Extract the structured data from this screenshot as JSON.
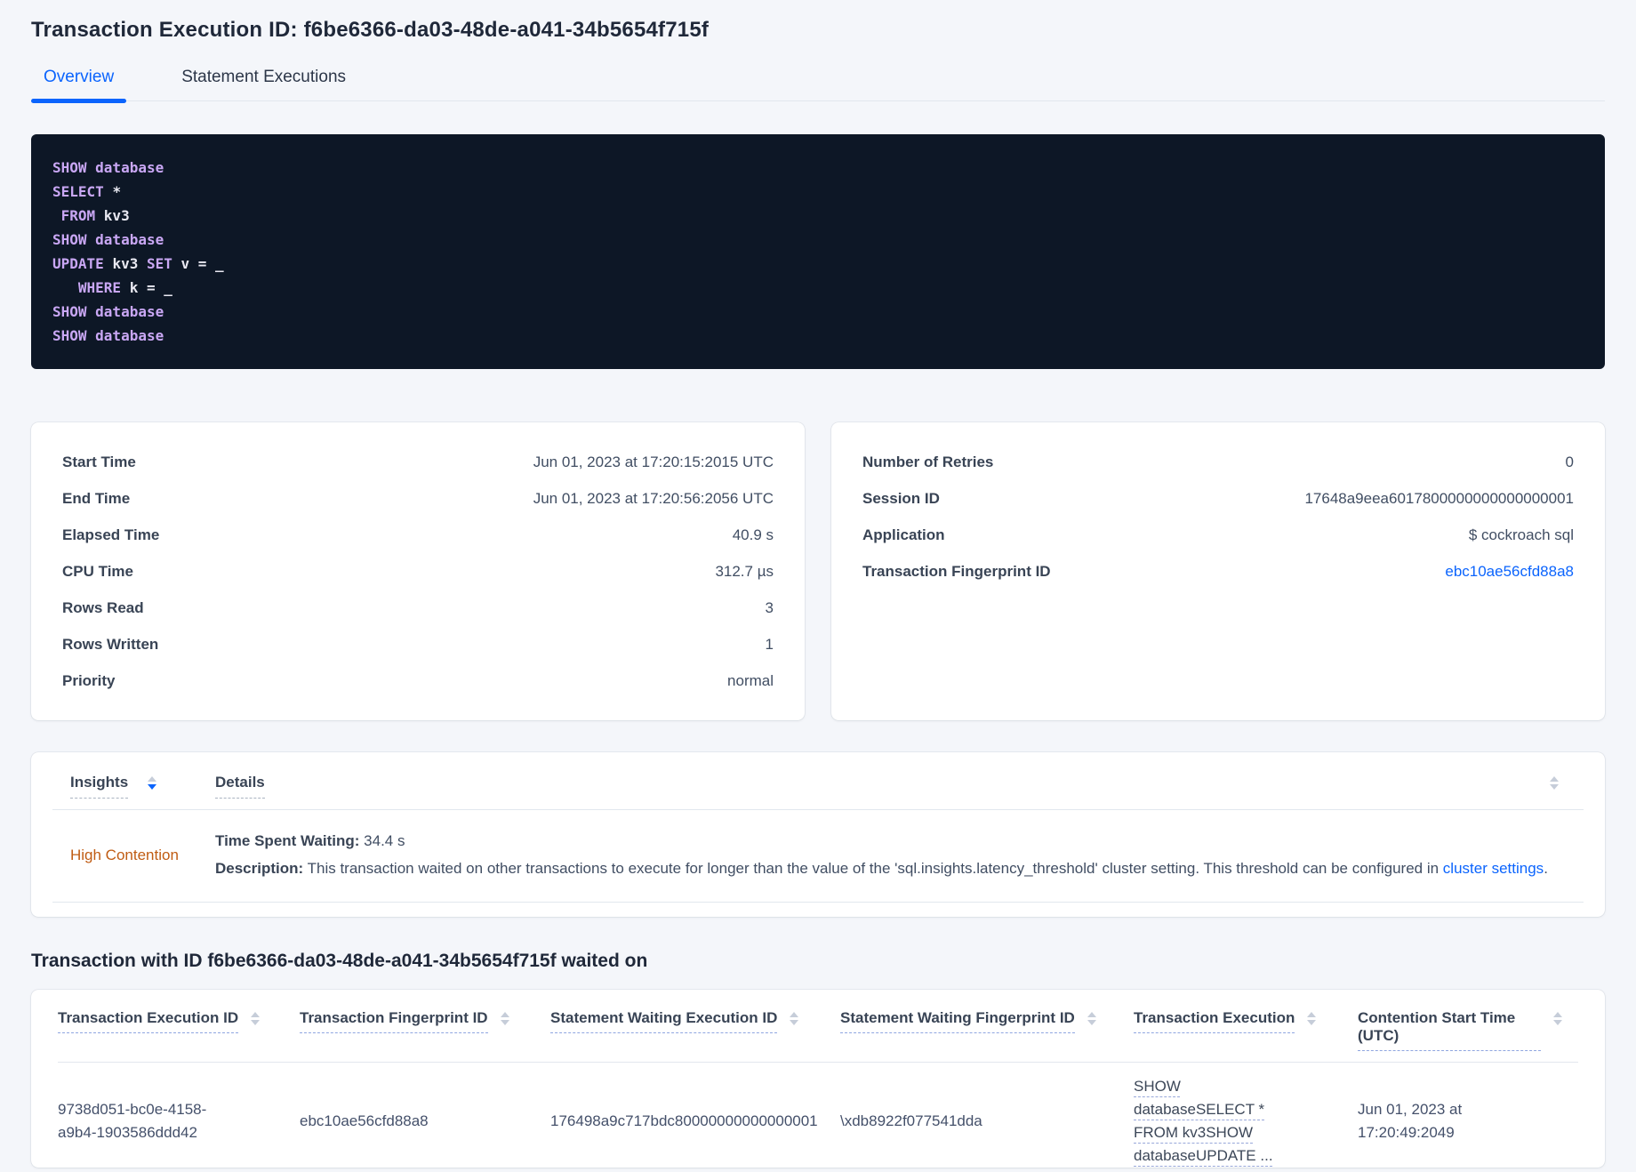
{
  "header": {
    "title": "Transaction Execution ID: f6be6366-da03-48de-a041-34b5654f715f",
    "tabs": [
      {
        "label": "Overview"
      },
      {
        "label": "Statement Executions"
      }
    ]
  },
  "sql": {
    "lines": [
      [
        {
          "t": "SHOW database",
          "c": "kw"
        }
      ],
      [
        {
          "t": "SELECT ",
          "c": "kw"
        },
        {
          "t": "*",
          "c": "pl"
        }
      ],
      [
        {
          "t": " FROM ",
          "c": "kw"
        },
        {
          "t": "kv3",
          "c": "pl"
        }
      ],
      [
        {
          "t": "SHOW database",
          "c": "kw"
        }
      ],
      [
        {
          "t": "UPDATE ",
          "c": "kw"
        },
        {
          "t": "kv3 ",
          "c": "pl"
        },
        {
          "t": "SET ",
          "c": "kw"
        },
        {
          "t": "v = _",
          "c": "pl"
        }
      ],
      [
        {
          "t": "   WHERE ",
          "c": "kw"
        },
        {
          "t": "k = _",
          "c": "pl"
        }
      ],
      [
        {
          "t": "SHOW database",
          "c": "kw"
        }
      ],
      [
        {
          "t": "SHOW database",
          "c": "kw"
        }
      ]
    ]
  },
  "details_left": {
    "rows": [
      {
        "label": "Start Time",
        "value": "Jun 01, 2023 at 17:20:15:2015 UTC"
      },
      {
        "label": "End Time",
        "value": "Jun 01, 2023 at 17:20:56:2056 UTC"
      },
      {
        "label": "Elapsed Time",
        "value": "40.9 s"
      },
      {
        "label": "CPU Time",
        "value": "312.7 µs"
      },
      {
        "label": "Rows Read",
        "value": "3"
      },
      {
        "label": "Rows Written",
        "value": "1"
      },
      {
        "label": "Priority",
        "value": "normal"
      }
    ]
  },
  "details_right": {
    "rows": [
      {
        "label": "Number of Retries",
        "value": "0"
      },
      {
        "label": "Session ID",
        "value": "17648a9eea6017800000000000000001"
      },
      {
        "label": "Application",
        "value": "$ cockroach sql"
      },
      {
        "label": "Transaction Fingerprint ID",
        "value": "ebc10ae56cfd88a8"
      }
    ]
  },
  "insights": {
    "col_insights": "Insights",
    "col_details": "Details",
    "row": {
      "insight": "High Contention",
      "waiting_label": "Time Spent Waiting:",
      "waiting_value": " 34.4 s",
      "description_label": "Description:",
      "description_text": " This transaction waited on other transactions to execute for longer than the value of the 'sql.insights.latency_threshold' cluster setting. This threshold can be configured in ",
      "description_link": "cluster settings",
      "description_suffix": "."
    }
  },
  "waited_on": {
    "heading": "Transaction with ID f6be6366-da03-48de-a041-34b5654f715f waited on",
    "columns": [
      "Transaction Execution ID",
      "Transaction Fingerprint ID",
      "Statement Waiting Execution ID",
      "Statement Waiting Fingerprint ID",
      "Transaction Execution",
      "Contention Start Time (UTC)"
    ],
    "row": {
      "txn_execution_id": "9738d051-bc0e-4158-a9b4-1903586ddd42",
      "txn_fingerprint_id": "ebc10ae56cfd88a8",
      "stmt_waiting_execution_id": "176498a9c717bdc80000000000000001",
      "stmt_waiting_fingerprint_id": "\\xdb8922f077541dda",
      "txn_execution": "SHOW databaseSELECT * FROM kv3SHOW databaseUPDATE ...",
      "contention_start": "Jun 01, 2023 at 17:20:49:2049"
    }
  },
  "colors": {
    "accent_blue": "#0b64fd",
    "insight_orange": "#c05c13",
    "code_background": "#0d1726",
    "code_keyword": "#c9a7f4",
    "code_plain": "#e9e9f2"
  }
}
